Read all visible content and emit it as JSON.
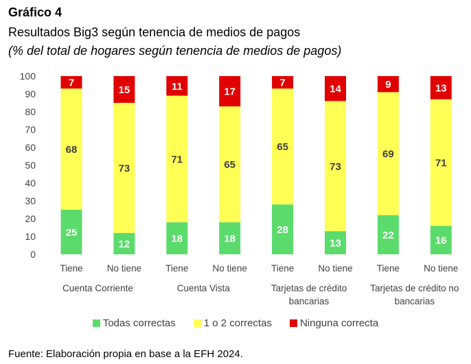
{
  "header": {
    "title": "Gráfico 4",
    "subtitle": "Resultados Big3 según tenencia de medios de pagos",
    "unit": "(% del total de hogares según tenencia de medios de pagos)"
  },
  "source": "Fuente: Elaboración propia en base a la EFH 2024.",
  "colors": {
    "todas": "#5CDB6D",
    "uno_dos": "#FFFF55",
    "ninguna": "#E00000"
  },
  "chart_data": {
    "type": "bar",
    "stacked": true,
    "title": "Resultados Big3 según tenencia de medios de pagos",
    "ylabel": "% del total de hogares según tenencia de medios de pagos",
    "xlabel": "",
    "ylim": [
      0,
      100
    ],
    "yticks": [
      0,
      10,
      20,
      30,
      40,
      50,
      60,
      70,
      80,
      90,
      100
    ],
    "grid": false,
    "legend_position": "bottom",
    "categories": [
      "Tiene",
      "No tiene",
      "Tiene",
      "No tiene",
      "Tiene",
      "No tiene",
      "Tiene",
      "No tiene"
    ],
    "groups": [
      {
        "label_lines": [
          "Cuenta Corriente"
        ],
        "span": [
          0,
          1
        ]
      },
      {
        "label_lines": [
          "Cuenta Vista"
        ],
        "span": [
          2,
          3
        ]
      },
      {
        "label_lines": [
          "Tarjetas de crédito",
          "bancarias"
        ],
        "span": [
          4,
          5
        ]
      },
      {
        "label_lines": [
          "Tarjetas de crédito no",
          "bancarias"
        ],
        "span": [
          6,
          7
        ]
      }
    ],
    "series": [
      {
        "name": "Todas correctas",
        "color": "#5CDB6D",
        "label_color": "#ffffff",
        "values": [
          25,
          12,
          18,
          18,
          28,
          13,
          22,
          16
        ]
      },
      {
        "name": "1 o 2 correctas",
        "color": "#FFFF55",
        "label_color": "#404040",
        "values": [
          68,
          73,
          71,
          65,
          65,
          73,
          69,
          71
        ]
      },
      {
        "name": "Ninguna correcta",
        "color": "#E00000",
        "label_color": "#ffffff",
        "values": [
          7,
          15,
          11,
          17,
          7,
          14,
          9,
          13
        ]
      }
    ]
  }
}
